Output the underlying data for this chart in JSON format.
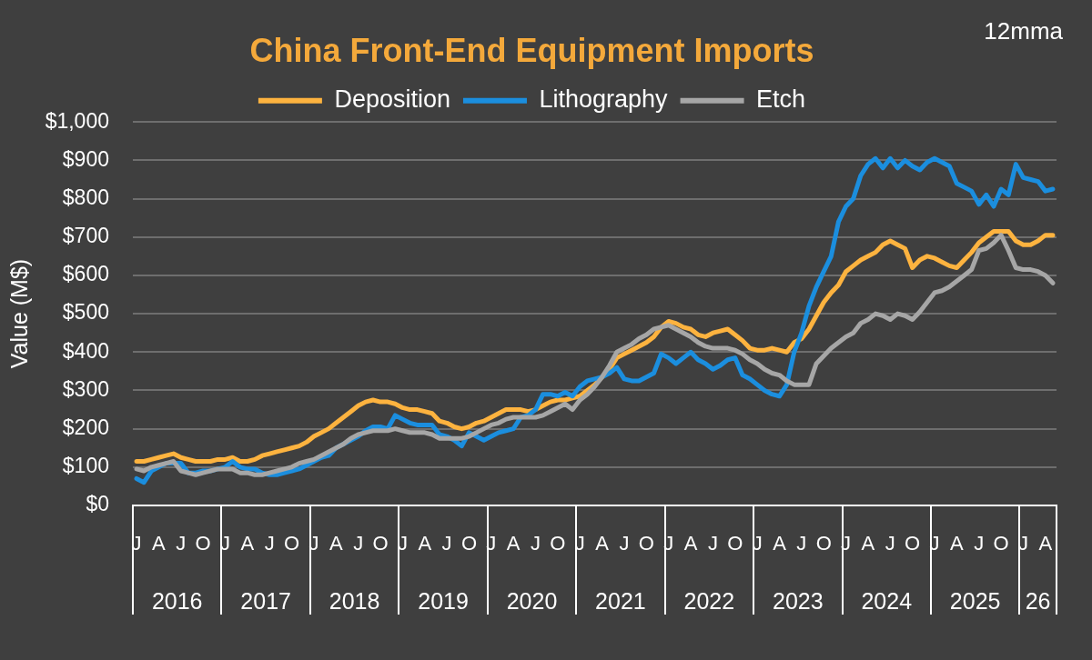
{
  "chart_data": {
    "type": "line",
    "title": "China Front-End Equipment Imports",
    "annotations": [
      "12mma"
    ],
    "ylabel": "Value (M$)",
    "legend": "top",
    "grid": "y",
    "marker": "none",
    "line_style": "solid",
    "categories": [
      "J",
      null,
      null,
      "A",
      null,
      null,
      "J",
      null,
      null,
      "O",
      null,
      null,
      "J",
      null,
      null,
      "A",
      null,
      null,
      "J",
      null,
      null,
      "O",
      null,
      null,
      "J",
      null,
      null,
      "A",
      null,
      null,
      "J",
      null,
      null,
      "O",
      null,
      null,
      "J",
      null,
      null,
      "A",
      null,
      null,
      "J",
      null,
      null,
      "O",
      null,
      null,
      "J",
      null,
      null,
      "A",
      null,
      null,
      "J",
      null,
      null,
      "O",
      null,
      null,
      "J",
      null,
      null,
      "A",
      null,
      null,
      "J",
      null,
      null,
      "O",
      null,
      null,
      "J",
      null,
      null,
      "A",
      null,
      null,
      "J",
      null,
      null,
      "O",
      null,
      null,
      "J",
      null,
      null,
      "A",
      null,
      null,
      "J",
      null,
      null,
      "O",
      null,
      null,
      "J",
      null,
      null,
      "A",
      null,
      null,
      "J",
      null,
      null,
      "O",
      null,
      null,
      "J",
      null,
      null,
      "A",
      null,
      null,
      "J",
      null,
      null,
      "O",
      null,
      null,
      "J",
      null,
      null,
      "A",
      null
    ],
    "x2lim": [
      "2016-01-01",
      "2026-06-01"
    ],
    "x2ticks": [
      {
        "value": "2016-07-01",
        "label": "2016"
      },
      {
        "value": "2017-07-01",
        "label": "2017"
      },
      {
        "value": "2018-07-01",
        "label": "2018"
      },
      {
        "value": "2019-07-01",
        "label": "2019"
      },
      {
        "value": "2020-07-01",
        "label": "2020"
      },
      {
        "value": "2021-07-01",
        "label": "2021"
      },
      {
        "value": "2022-07-01",
        "label": "2022"
      },
      {
        "value": "2023-07-01",
        "label": "2023"
      },
      {
        "value": "2024-07-01",
        "label": "2024"
      },
      {
        "value": "2025-07-01",
        "label": "2025"
      },
      {
        "value": "2026-03-16",
        "label": "26"
      }
    ],
    "ylim": [
      0,
      1000
    ],
    "yticks": [
      {
        "value": 0,
        "label": "$0"
      },
      {
        "value": 100,
        "label": "$100"
      },
      {
        "value": 200,
        "label": "$200"
      },
      {
        "value": 300,
        "label": "$300"
      },
      {
        "value": 400,
        "label": "$400"
      },
      {
        "value": 500,
        "label": "$500"
      },
      {
        "value": 600,
        "label": "$600"
      },
      {
        "value": 700,
        "label": "$700"
      },
      {
        "value": 800,
        "label": "$800"
      },
      {
        "value": 900,
        "label": "$900"
      },
      {
        "value": 1000,
        "label": "$1,000"
      }
    ],
    "series": [
      {
        "name": "Deposition",
        "color": "#fdb33f",
        "values": [
          115,
          115,
          120,
          125,
          130,
          135,
          125,
          120,
          115,
          115,
          115,
          120,
          120,
          125,
          115,
          115,
          120,
          130,
          135,
          140,
          145,
          150,
          155,
          165,
          180,
          190,
          200,
          215,
          230,
          245,
          260,
          270,
          275,
          270,
          270,
          265,
          255,
          250,
          250,
          245,
          240,
          220,
          215,
          205,
          200,
          205,
          215,
          220,
          230,
          240,
          250,
          250,
          250,
          245,
          250,
          260,
          270,
          275,
          275,
          280,
          285,
          300,
          315,
          335,
          355,
          385,
          395,
          405,
          415,
          425,
          440,
          465,
          480,
          475,
          465,
          460,
          445,
          440,
          450,
          455,
          460,
          445,
          430,
          410,
          405,
          405,
          410,
          405,
          400,
          425,
          435,
          460,
          495,
          530,
          555,
          575,
          610,
          625,
          640,
          650,
          660,
          680,
          690,
          680,
          670,
          620,
          640,
          650,
          645,
          635,
          625,
          620,
          640,
          660,
          685,
          700,
          715,
          715,
          715,
          690,
          680,
          680,
          690,
          705,
          705
        ]
      },
      {
        "name": "Lithography",
        "color": "#1b8ede",
        "values": [
          70,
          60,
          90,
          100,
          110,
          110,
          110,
          85,
          85,
          90,
          90,
          95,
          100,
          115,
          100,
          95,
          95,
          85,
          80,
          80,
          85,
          90,
          95,
          105,
          115,
          125,
          130,
          150,
          160,
          170,
          180,
          195,
          205,
          205,
          200,
          235,
          225,
          215,
          210,
          210,
          210,
          185,
          180,
          170,
          155,
          190,
          180,
          170,
          180,
          190,
          195,
          200,
          230,
          235,
          250,
          290,
          290,
          285,
          295,
          285,
          310,
          325,
          330,
          335,
          345,
          360,
          330,
          325,
          325,
          335,
          345,
          395,
          385,
          370,
          385,
          400,
          380,
          370,
          355,
          365,
          380,
          385,
          340,
          330,
          315,
          300,
          290,
          285,
          315,
          400,
          450,
          520,
          570,
          610,
          650,
          740,
          780,
          800,
          860,
          890,
          905,
          880,
          905,
          880,
          900,
          885,
          875,
          895,
          905,
          895,
          885,
          840,
          830,
          820,
          785,
          810,
          780,
          825,
          810,
          890,
          855,
          850,
          845,
          820,
          825
        ]
      },
      {
        "name": "Etch",
        "color": "#a6a6a6",
        "values": [
          95,
          90,
          100,
          105,
          110,
          115,
          90,
          85,
          80,
          85,
          90,
          95,
          95,
          95,
          85,
          85,
          80,
          80,
          85,
          90,
          95,
          100,
          110,
          115,
          120,
          130,
          140,
          150,
          160,
          175,
          185,
          190,
          195,
          195,
          195,
          200,
          195,
          190,
          190,
          190,
          185,
          175,
          175,
          175,
          175,
          180,
          190,
          200,
          210,
          215,
          225,
          230,
          230,
          230,
          230,
          235,
          245,
          255,
          265,
          250,
          275,
          290,
          310,
          335,
          365,
          400,
          410,
          420,
          435,
          445,
          460,
          465,
          470,
          460,
          450,
          440,
          425,
          415,
          410,
          410,
          410,
          405,
          395,
          380,
          370,
          355,
          345,
          340,
          325,
          315,
          315,
          315,
          370,
          390,
          410,
          425,
          440,
          450,
          475,
          485,
          500,
          495,
          485,
          500,
          495,
          485,
          505,
          530,
          555,
          560,
          570,
          585,
          600,
          615,
          665,
          670,
          685,
          705,
          665,
          620,
          615,
          615,
          610,
          600,
          580
        ]
      }
    ]
  }
}
